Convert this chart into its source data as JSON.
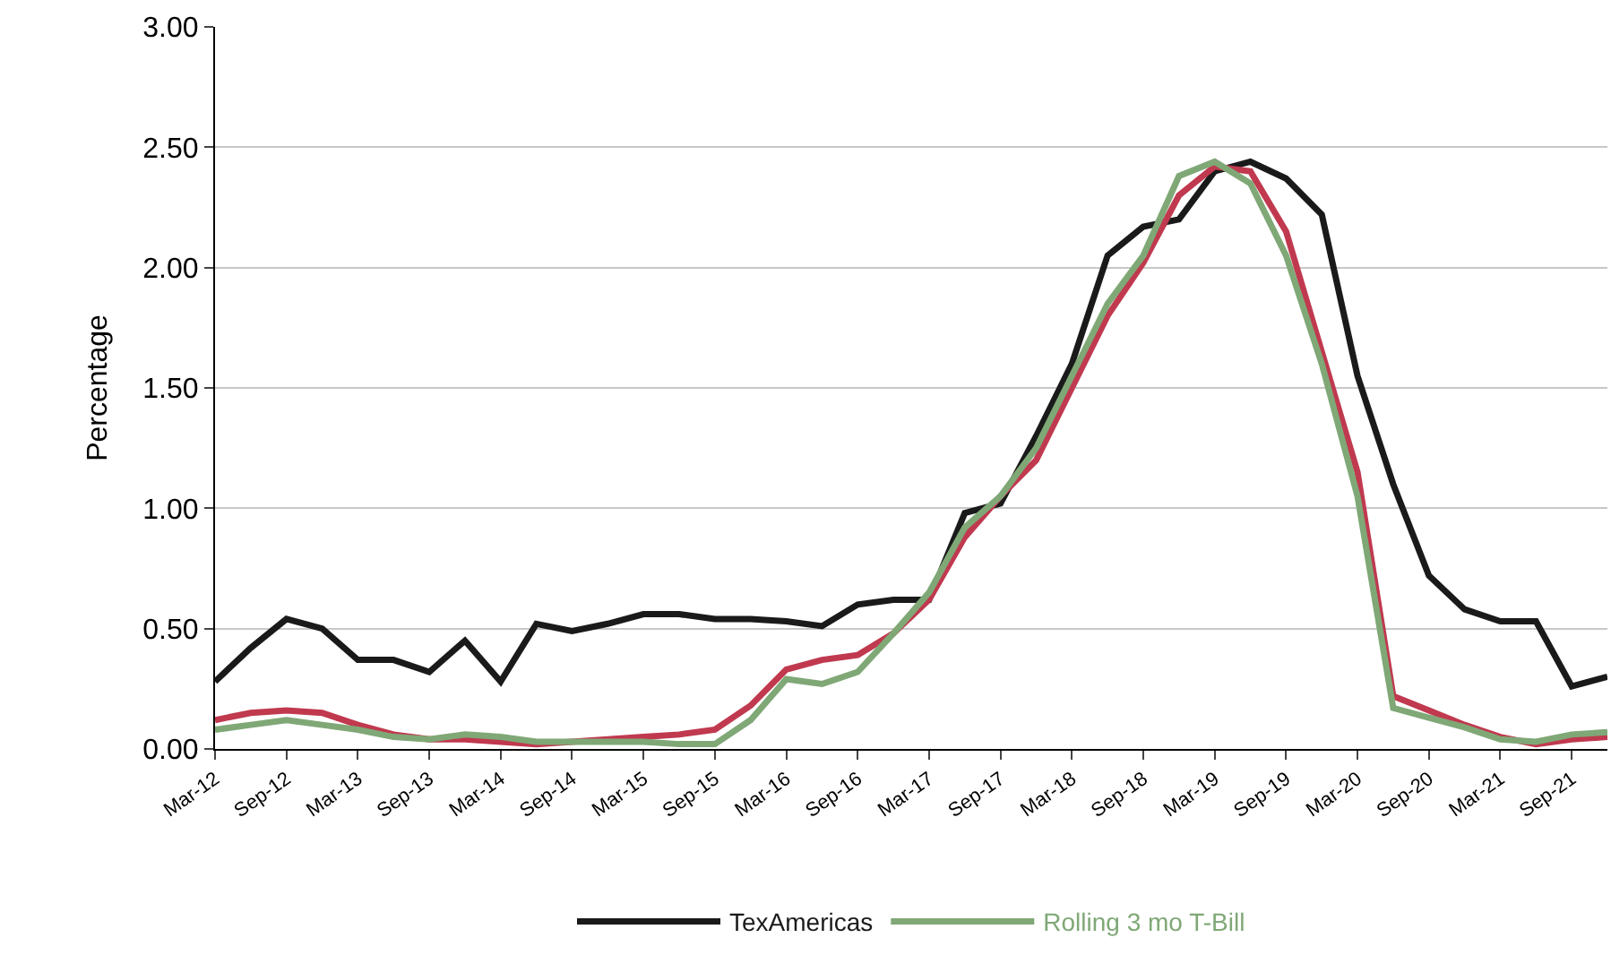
{
  "chart_data": {
    "type": "line",
    "ylabel": "Percentage",
    "categories": [
      "Mar-12",
      null,
      "Sep-12",
      null,
      "Mar-13",
      null,
      "Sep-13",
      null,
      "Mar-14",
      null,
      "Sep-14",
      null,
      "Mar-15",
      null,
      "Sep-15",
      null,
      "Mar-16",
      null,
      "Sep-16",
      null,
      "Mar-17",
      null,
      "Sep-17",
      null,
      "Mar-18",
      null,
      "Sep-18",
      null,
      "Mar-19",
      null,
      "Sep-19",
      null,
      "Mar-20",
      null,
      "Sep-20",
      null,
      "Mar-21",
      null,
      "Sep-21",
      null
    ],
    "series": [
      {
        "name": "TexAmericas",
        "color": "#1a1a1a",
        "values": [
          0.28,
          0.42,
          0.54,
          0.5,
          0.37,
          0.37,
          0.32,
          0.45,
          0.28,
          0.52,
          0.49,
          0.52,
          0.56,
          0.56,
          0.54,
          0.54,
          0.53,
          0.51,
          0.6,
          0.62,
          0.62,
          0.98,
          1.02,
          1.3,
          1.6,
          2.05,
          2.17,
          2.2,
          2.4,
          2.44,
          2.37,
          2.22,
          1.55,
          1.1,
          0.72,
          0.58,
          0.53,
          0.53,
          0.26,
          0.3
        ]
      },
      {
        "color": "#c0394f",
        "values": [
          0.12,
          0.15,
          0.16,
          0.15,
          0.1,
          0.06,
          0.04,
          0.04,
          0.03,
          0.02,
          0.03,
          0.04,
          0.05,
          0.06,
          0.08,
          0.18,
          0.33,
          0.37,
          0.39,
          0.48,
          0.62,
          0.88,
          1.05,
          1.2,
          1.5,
          1.8,
          2.02,
          2.3,
          2.42,
          2.4,
          2.15,
          1.65,
          1.15,
          0.22,
          0.16,
          0.1,
          0.05,
          0.02,
          0.04,
          0.05
        ]
      },
      {
        "name": "Rolling 3 mo T-Bill",
        "color": "#7fa876",
        "values": [
          0.08,
          0.1,
          0.12,
          0.1,
          0.08,
          0.05,
          0.04,
          0.06,
          0.05,
          0.03,
          0.03,
          0.03,
          0.03,
          0.02,
          0.02,
          0.12,
          0.29,
          0.27,
          0.32,
          0.48,
          0.65,
          0.92,
          1.05,
          1.25,
          1.55,
          1.85,
          2.05,
          2.38,
          2.44,
          2.35,
          2.05,
          1.6,
          1.05,
          0.17,
          0.13,
          0.09,
          0.04,
          0.03,
          0.06,
          0.07
        ]
      }
    ],
    "ylim": [
      0,
      3
    ],
    "yticks": [
      {
        "value": 0,
        "label": "0.00"
      },
      {
        "value": 0.5,
        "label": "0.50"
      },
      {
        "value": 1,
        "label": "1.00"
      },
      {
        "value": 1.5,
        "label": "1.50"
      },
      {
        "value": 2,
        "label": "2.00"
      },
      {
        "value": 2.5,
        "label": "2.50"
      },
      {
        "value": 3,
        "label": "3.00"
      }
    ],
    "grid": "y",
    "legend": "bottom",
    "marker": "none",
    "line_style": "solid"
  }
}
